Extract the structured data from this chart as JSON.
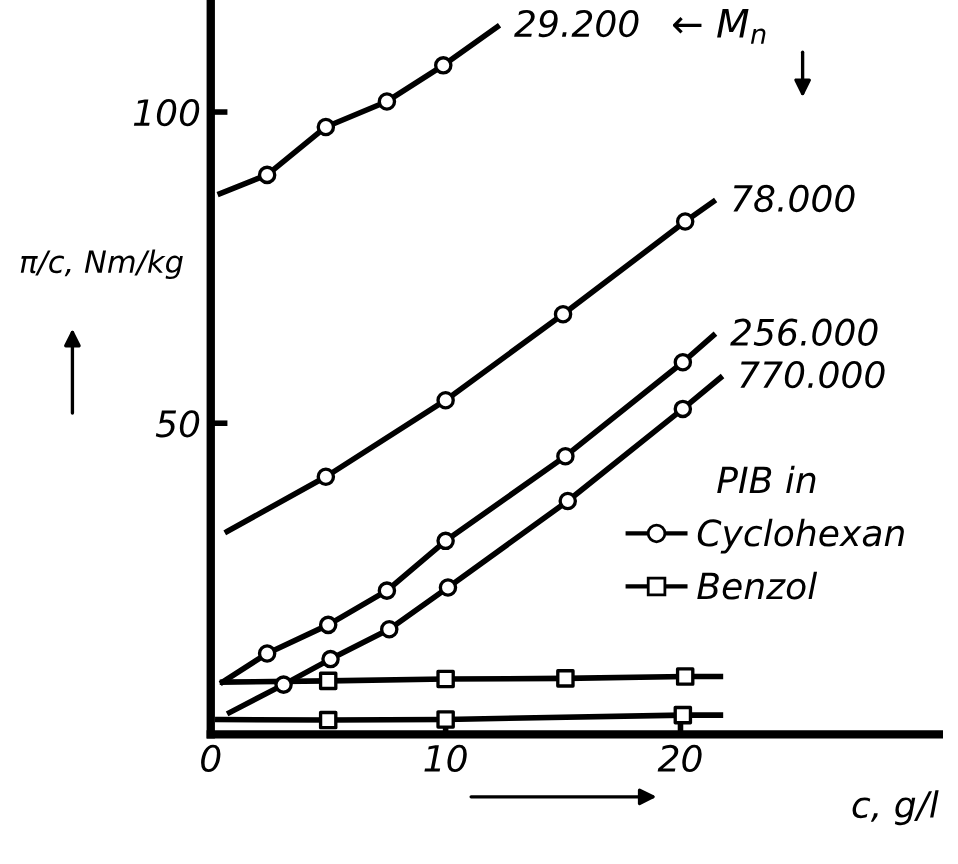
{
  "chart_data": {
    "type": "line",
    "xlabel": "c, g/l",
    "ylabel": "π/c, Nm/kg",
    "legend_title": "PIB in",
    "legend": "right",
    "grid": false,
    "xlim": [
      0,
      31
    ],
    "ylim": [
      0,
      118
    ],
    "xticks": [
      0,
      10,
      20
    ],
    "yticks": [
      50,
      100
    ],
    "series": [
      {
        "marker": "none",
        "color": "#000000",
        "x": [
          0.4,
          2.4,
          4.9,
          7.5,
          9.9,
          12.2
        ],
        "values": [
          86.9,
          89.9,
          97.6,
          101.7,
          107.5,
          113.7
        ]
      },
      {
        "marker": "none",
        "color": "#000000",
        "x": [
          0.7,
          4.9,
          10.0,
          15.0,
          20.2,
          21.4
        ],
        "values": [
          32.6,
          41.4,
          53.7,
          67.5,
          82.4,
          85.6
        ]
      },
      {
        "marker": "none",
        "color": "#000000",
        "x": [
          0.5,
          2.4,
          5.0,
          7.5,
          10.0,
          15.1,
          20.1,
          21.4
        ],
        "values": [
          8.4,
          13.0,
          17.6,
          23.1,
          31.1,
          44.7,
          59.8,
          64.1
        ]
      },
      {
        "marker": "none",
        "color": "#000000",
        "x": [
          0.8,
          3.1,
          5.1,
          7.6,
          10.1,
          15.2,
          20.1,
          21.7
        ],
        "values": [
          3.5,
          8.0,
          12.1,
          16.9,
          23.6,
          37.5,
          52.3,
          57.3
        ]
      },
      {
        "marker": "none",
        "color": "#000000",
        "x": [
          0.5,
          5.0,
          10.0,
          15.1,
          20.2,
          21.7
        ],
        "values": [
          8.4,
          8.6,
          8.9,
          9.0,
          9.3,
          9.3
        ]
      },
      {
        "marker": "none",
        "color": "#000000",
        "x": [
          0.3,
          5.0,
          10.0,
          20.1,
          21.7
        ],
        "values": [
          2.4,
          2.3,
          2.4,
          3.1,
          3.1
        ]
      },
      {
        "type": "scatter",
        "marker": "circle",
        "name": "Cyclohexan",
        "color": "#000000",
        "x": [
          2.4,
          4.9,
          7.5,
          9.9
        ],
        "values": [
          89.9,
          97.6,
          101.7,
          107.5
        ]
      },
      {
        "type": "scatter",
        "marker": "circle",
        "color": "#000000",
        "x": [
          4.9,
          10.0,
          15.0,
          20.2
        ],
        "values": [
          41.4,
          53.7,
          67.5,
          82.4
        ]
      },
      {
        "type": "scatter",
        "marker": "circle",
        "color": "#000000",
        "x": [
          2.4,
          5.0,
          7.5,
          10.0,
          15.1,
          20.1
        ],
        "values": [
          13.0,
          17.6,
          23.1,
          31.1,
          44.7,
          59.8
        ]
      },
      {
        "type": "scatter",
        "marker": "circle",
        "color": "#000000",
        "x": [
          3.1,
          5.1,
          7.6,
          10.1,
          15.2,
          20.1
        ],
        "values": [
          8.0,
          12.1,
          16.9,
          23.6,
          37.5,
          52.3
        ]
      },
      {
        "type": "scatter",
        "marker": "square",
        "name": "Benzol",
        "color": "#000000",
        "x": [
          5.0,
          10.0,
          15.1,
          20.2
        ],
        "values": [
          8.6,
          8.9,
          9.0,
          9.3
        ]
      },
      {
        "type": "scatter",
        "marker": "square",
        "color": "#000000",
        "x": [
          5.0,
          10.0,
          20.1
        ],
        "values": [
          2.3,
          2.4,
          3.1
        ]
      }
    ],
    "annotations": [
      {
        "text": "29.200",
        "x": 12.2,
        "y": 113.7
      },
      {
        "text": "78.000",
        "x": 21.4,
        "y": 85.6
      },
      {
        "text": "256.000",
        "x": 21.4,
        "y": 64.1
      },
      {
        "text": "770.000",
        "x": 21.7,
        "y": 57.3
      },
      "← M$_{n}$"
    ]
  }
}
